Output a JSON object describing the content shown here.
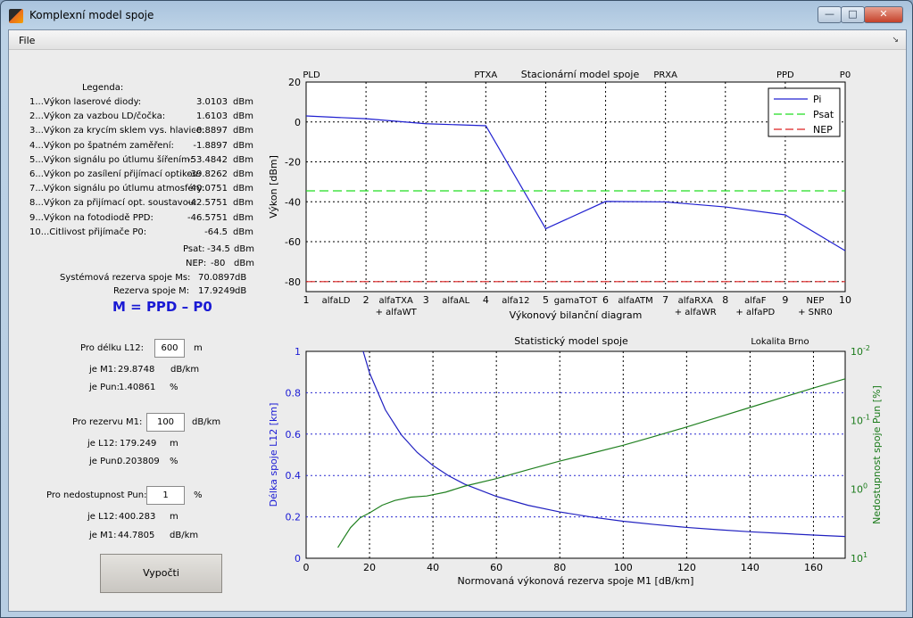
{
  "window": {
    "title": "Komplexní model spoje",
    "minimize_icon": "minimize-icon",
    "maximize_icon": "maximize-icon",
    "close_icon": "close-icon"
  },
  "menu": {
    "file": "File"
  },
  "legend": {
    "title": "Legenda:",
    "rows": [
      {
        "label": "1...Výkon laserové diody:",
        "value": "3.0103",
        "unit": "dBm"
      },
      {
        "label": "2...Výkon za vazbou LD/čočka:",
        "value": "1.6103",
        "unit": "dBm"
      },
      {
        "label": "3...Výkon za krycím sklem vys. hlavice:",
        "value": "-0.8897",
        "unit": "dBm"
      },
      {
        "label": "4...Výkon po špatném zaměření:",
        "value": "-1.8897",
        "unit": "dBm"
      },
      {
        "label": "5...Výkon signálu po útlumu šířením:",
        "value": "-53.4842",
        "unit": "dBm"
      },
      {
        "label": "6...Výkon po zasílení přijímací optikou:",
        "value": "-39.8262",
        "unit": "dBm"
      },
      {
        "label": "7...Výkon signálu po útlumu atmosféry:",
        "value": "-40.0751",
        "unit": "dBm"
      },
      {
        "label": "8...Výkon za přijímací opt. soustavou:",
        "value": "-42.5751",
        "unit": "dBm"
      },
      {
        "label": "9...Výkon na fotodiodě PPD:",
        "value": "-46.5751",
        "unit": "dBm"
      },
      {
        "label": "10...Citlivost přijímače P0:",
        "value": "-64.5",
        "unit": "dBm"
      }
    ],
    "psat_label": "Psat:",
    "psat_value": "-34.5",
    "psat_unit": "dBm",
    "nep_label": "NEP:",
    "nep_value": "-80",
    "nep_unit": "dBm",
    "ms_label": "Systémová rezerva spoje Ms:",
    "ms_value": "70.0897",
    "ms_unit": "dB",
    "m_label": "Rezerva spoje M:",
    "m_value": "17.9249",
    "m_unit": "dB",
    "formula": "M = PPD – P0"
  },
  "section1": {
    "label": "Pro délku L12:",
    "input": "600",
    "unit": "m",
    "r1_label": "je M1:",
    "r1_value": "29.8748",
    "r1_unit": "dB/km",
    "r2_label": "je Pun:",
    "r2_value": "1.40861",
    "r2_unit": "%"
  },
  "section2": {
    "label": "Pro rezervu M1:",
    "input": "100",
    "unit": "dB/km",
    "r1_label": "je L12:",
    "r1_value": "179.249",
    "r1_unit": "m",
    "r2_label": "je Pun:",
    "r2_value": "0.203809",
    "r2_unit": "%"
  },
  "section3": {
    "label": "Pro nedostupnost Pun:",
    "input": "1",
    "unit": "%",
    "r1_label": "je L12:",
    "r1_value": "400.283",
    "r1_unit": "m",
    "r2_label": "je M1:",
    "r2_value": "44.7805",
    "r2_unit": "dB/km"
  },
  "button": {
    "calc": "Vypočti"
  },
  "chart_data": [
    {
      "type": "line",
      "title": "Stacionární model spoje",
      "xlabel": "Výkonový bilanční diagram",
      "ylabel": "Výkon [dBm]",
      "xlim": [
        1,
        10
      ],
      "ylim": [
        -85,
        20
      ],
      "yticks": [
        20,
        0,
        -20,
        -40,
        -60,
        -80
      ],
      "xticks": [
        1,
        2,
        3,
        4,
        5,
        6,
        7,
        8,
        9,
        10
      ],
      "top_labels": [
        {
          "x": 1,
          "text": "PLD"
        },
        {
          "x": 4,
          "text": "PTXA"
        },
        {
          "x": 7,
          "text": "PRXA"
        },
        {
          "x": 9,
          "text": "PPD"
        },
        {
          "x": 10,
          "text": "P0"
        }
      ],
      "segment_labels": [
        {
          "x": 1.5,
          "l1": "alfaLD",
          "l2": ""
        },
        {
          "x": 2.5,
          "l1": "alfaTXA",
          "l2": "+ alfaWT"
        },
        {
          "x": 3.5,
          "l1": "alfaAL",
          "l2": ""
        },
        {
          "x": 4.5,
          "l1": "alfa12",
          "l2": ""
        },
        {
          "x": 5.5,
          "l1": "gamaTOT",
          "l2": ""
        },
        {
          "x": 6.5,
          "l1": "alfaATM",
          "l2": ""
        },
        {
          "x": 7.5,
          "l1": "alfaRXA",
          "l2": "+ alfaWR"
        },
        {
          "x": 8.5,
          "l1": "alfaF",
          "l2": "+ alfaPD"
        },
        {
          "x": 9.5,
          "l1": "NEP",
          "l2": "+ SNR0"
        }
      ],
      "legend_position": "top-right",
      "series": [
        {
          "name": "Pi",
          "color": "#2020d0",
          "style": "solid",
          "x": [
            1,
            2,
            3,
            4,
            5,
            6,
            7,
            8,
            9,
            10
          ],
          "y": [
            3.0103,
            1.6103,
            -0.8897,
            -1.8897,
            -53.4842,
            -39.8262,
            -40.0751,
            -42.5751,
            -46.5751,
            -64.5
          ]
        },
        {
          "name": "Psat",
          "color": "#22dd22",
          "style": "dashed",
          "x": [
            1,
            10
          ],
          "y": [
            -34.5,
            -34.5
          ]
        },
        {
          "name": "NEP",
          "color": "#dd2222",
          "style": "dashed",
          "x": [
            1,
            10
          ],
          "y": [
            -80,
            -80
          ]
        }
      ]
    },
    {
      "type": "line",
      "title": "Statistický model spoje",
      "annotation": "Lokalita Brno",
      "xlabel": "Normovaná výkonová rezerva spoje M1 [dB/km]",
      "ylabel": "Délka spoje L12 [km]",
      "y2label": "Nedostupnost spoje Pun [%]",
      "xlim": [
        0,
        170
      ],
      "ylim": [
        0,
        1
      ],
      "xticks": [
        0,
        20,
        40,
        60,
        80,
        100,
        120,
        140,
        160
      ],
      "yticks": [
        0,
        0.2,
        0.4,
        0.6,
        0.8,
        1
      ],
      "y2_scale": "log",
      "y2_reversed": true,
      "y2lim": [
        0.01,
        10
      ],
      "y2ticks": [
        {
          "base": "10",
          "exp": "-2"
        },
        {
          "base": "10",
          "exp": "-1"
        },
        {
          "base": "10",
          "exp": "0"
        },
        {
          "base": "10",
          "exp": "1"
        }
      ],
      "series": [
        {
          "name": "L12",
          "color": "#2020c0",
          "axis": "left",
          "x": [
            18,
            20,
            25,
            30,
            35,
            40,
            45,
            50,
            60,
            70,
            80,
            90,
            100,
            110,
            120,
            130,
            140,
            150,
            160,
            170
          ],
          "y": [
            1.0,
            0.896,
            0.717,
            0.597,
            0.512,
            0.448,
            0.398,
            0.358,
            0.299,
            0.256,
            0.224,
            0.199,
            0.179,
            0.163,
            0.149,
            0.138,
            0.128,
            0.12,
            0.112,
            0.105
          ]
        },
        {
          "name": "Pun",
          "color": "#208020",
          "axis": "right",
          "x": [
            10,
            12,
            14,
            17,
            20,
            24,
            28,
            33,
            38,
            44,
            50,
            60,
            70,
            80,
            90,
            100,
            110,
            120,
            130,
            140,
            150,
            160,
            170
          ],
          "y": [
            7.0,
            5.0,
            3.6,
            2.6,
            2.2,
            1.7,
            1.45,
            1.3,
            1.25,
            1.1,
            0.9,
            0.7,
            0.52,
            0.39,
            0.3,
            0.23,
            0.17,
            0.125,
            0.09,
            0.065,
            0.047,
            0.034,
            0.025
          ]
        }
      ]
    }
  ]
}
